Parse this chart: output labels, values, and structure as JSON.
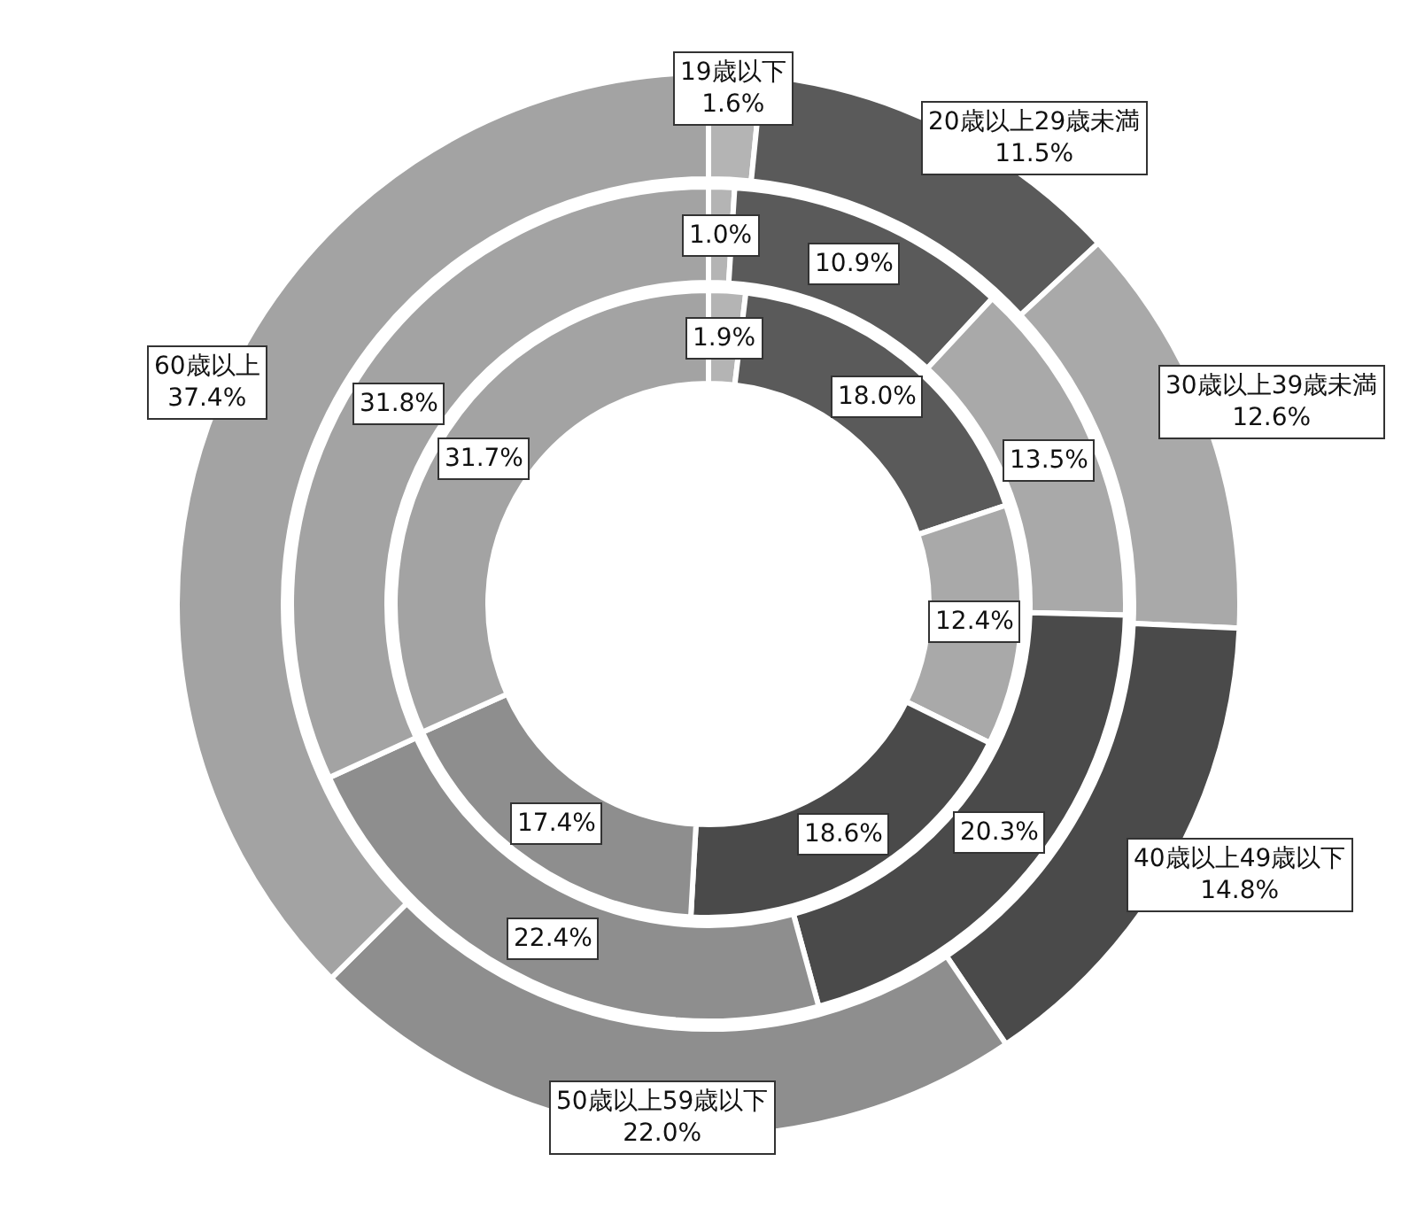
{
  "chart_data": {
    "type": "donut",
    "legend": false,
    "categories": [
      "19歳以下",
      "20歳以上29歳未満",
      "30歳以上39歳未満",
      "40歳以上49歳以下",
      "50歳以上59歳以下",
      "60歳以上"
    ],
    "colors": [
      "#b4b4b4",
      "#5a5a5a",
      "#a9a9a9",
      "#4a4a4a",
      "#8e8e8e",
      "#a3a3a3"
    ],
    "series": [
      {
        "values": [
          1.6,
          11.5,
          12.6,
          14.8,
          22.0,
          37.4
        ],
        "value_labels": [
          "1.6%",
          "11.5%",
          "12.6%",
          "14.8%",
          "22.0%",
          "37.4%"
        ]
      },
      {
        "values": [
          1.0,
          10.9,
          13.5,
          20.3,
          22.4,
          31.8
        ],
        "value_labels": [
          "1.0%",
          "10.9%",
          "13.5%",
          "20.3%",
          "22.4%",
          "31.8%"
        ]
      },
      {
        "values": [
          1.9,
          18.0,
          12.4,
          18.6,
          17.4,
          31.7
        ],
        "value_labels": [
          "1.9%",
          "18.0%",
          "12.4%",
          "18.6%",
          "17.4%",
          "31.7%"
        ]
      }
    ]
  }
}
